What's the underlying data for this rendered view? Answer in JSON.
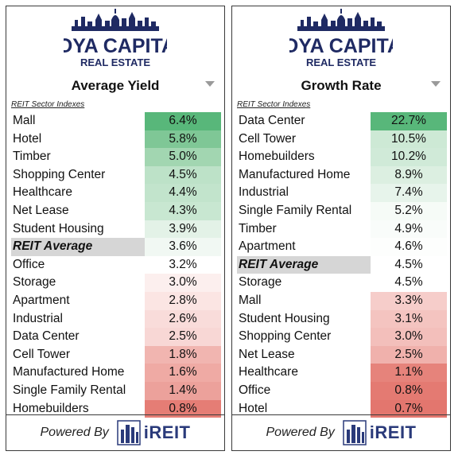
{
  "brand": {
    "name_line1": "HOYA CAPITAL",
    "name_line2": "REAL ESTATE",
    "powered_by": "Powered By",
    "partner": "iREIT"
  },
  "colors": {
    "brand_navy": "#1f2a63",
    "green_strong": "#5cb87a",
    "green_light": "#e6f4ea",
    "red_strong": "#e2736b",
    "red_light": "#fbe9e8",
    "neutral": "#ffffff",
    "average_highlight": "#d6d6d6"
  },
  "panels": [
    {
      "title": "Average Yield",
      "subtitle": "REIT Sector Indexes",
      "rows": [
        {
          "name": "Mall",
          "value": "6.4%",
          "color": "#58b77a"
        },
        {
          "name": "Hotel",
          "value": "5.8%",
          "color": "#7fc796"
        },
        {
          "name": "Timber",
          "value": "5.0%",
          "color": "#a2d6b1"
        },
        {
          "name": "Shopping Center",
          "value": "4.5%",
          "color": "#bde2c8"
        },
        {
          "name": "Healthcare",
          "value": "4.4%",
          "color": "#c2e4cc"
        },
        {
          "name": "Net Lease",
          "value": "4.3%",
          "color": "#c8e7d1"
        },
        {
          "name": "Student Housing",
          "value": "3.9%",
          "color": "#e3f2e7"
        },
        {
          "name": "REIT Average",
          "value": "3.6%",
          "color": "#f1f8f3",
          "average": true
        },
        {
          "name": "Office",
          "value": "3.2%",
          "color": "#ffffff"
        },
        {
          "name": "Storage",
          "value": "3.0%",
          "color": "#fcefee"
        },
        {
          "name": "Apartment",
          "value": "2.8%",
          "color": "#fbe5e3"
        },
        {
          "name": "Industrial",
          "value": "2.6%",
          "color": "#f9dcda"
        },
        {
          "name": "Data Center",
          "value": "2.5%",
          "color": "#f8d7d5"
        },
        {
          "name": "Cell Tower",
          "value": "1.8%",
          "color": "#f1b5b0"
        },
        {
          "name": "Manufactured Home",
          "value": "1.6%",
          "color": "#efaaa4"
        },
        {
          "name": "Single Family Rental",
          "value": "1.4%",
          "color": "#eca19b"
        },
        {
          "name": "Homebuilders",
          "value": "0.8%",
          "color": "#e57d75"
        }
      ]
    },
    {
      "title": "Growth Rate",
      "subtitle": "REIT Sector Indexes",
      "rows": [
        {
          "name": "Data Center",
          "value": "22.7%",
          "color": "#58b77a"
        },
        {
          "name": "Cell Tower",
          "value": "10.5%",
          "color": "#cde9d5"
        },
        {
          "name": "Homebuilders",
          "value": "10.2%",
          "color": "#d0ead8"
        },
        {
          "name": "Manufactured Home",
          "value": "8.9%",
          "color": "#dcefe1"
        },
        {
          "name": "Industrial",
          "value": "7.4%",
          "color": "#e7f4eb"
        },
        {
          "name": "Single Family Rental",
          "value": "5.2%",
          "color": "#f6fbf7"
        },
        {
          "name": "Timber",
          "value": "4.9%",
          "color": "#f9fcfa"
        },
        {
          "name": "Apartment",
          "value": "4.6%",
          "color": "#fdfefd"
        },
        {
          "name": "REIT Average",
          "value": "4.5%",
          "color": "#ffffff",
          "average": true
        },
        {
          "name": "Storage",
          "value": "4.5%",
          "color": "#ffffff"
        },
        {
          "name": "Mall",
          "value": "3.3%",
          "color": "#f6cdca"
        },
        {
          "name": "Student Housing",
          "value": "3.1%",
          "color": "#f4c4c0"
        },
        {
          "name": "Shopping Center",
          "value": "3.0%",
          "color": "#f3bfbb"
        },
        {
          "name": "Net Lease",
          "value": "2.5%",
          "color": "#f0b1ac"
        },
        {
          "name": "Healthcare",
          "value": "1.1%",
          "color": "#e6837b"
        },
        {
          "name": "Office",
          "value": "0.8%",
          "color": "#e47a72"
        },
        {
          "name": "Hotel",
          "value": "0.7%",
          "color": "#e3766e"
        }
      ]
    }
  ]
}
